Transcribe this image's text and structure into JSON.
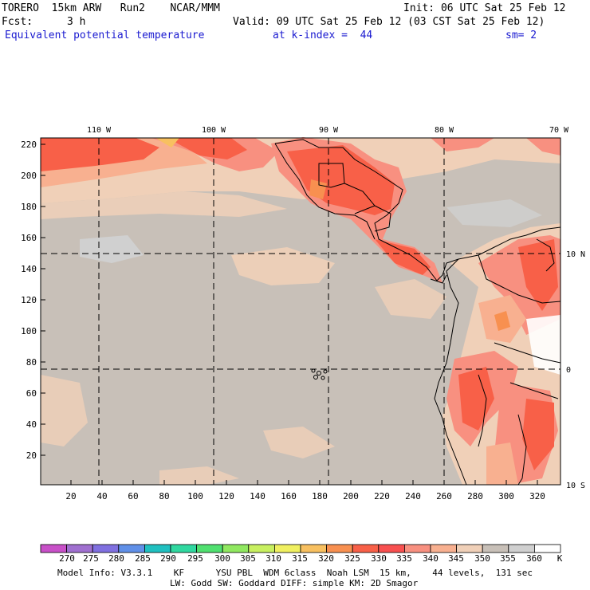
{
  "header": {
    "model_line": "TORERO  15km ARW   Run2    NCAR/MMM",
    "init": "Init: 06 UTC Sat 25 Feb 12",
    "fcst_label": "Fcst:",
    "fcst_value": "3 h",
    "valid": "Valid: 09 UTC Sat 25 Feb 12 (03 CST Sat 25 Feb 12)",
    "field": "Equivalent potential temperature",
    "kindex": "at k-index =  44",
    "smooth": "sm= 2"
  },
  "map": {
    "lon_labels": [
      "110 W",
      "100 W",
      "90 W",
      "80 W",
      "70 W"
    ],
    "lat_labels": [
      "10 N",
      "0",
      "10 S"
    ],
    "y_ticks": [
      "220",
      "200",
      "180",
      "160",
      "140",
      "120",
      "100",
      "80",
      "60",
      "40",
      "20"
    ],
    "x_ticks": [
      "20",
      "40",
      "60",
      "80",
      "100",
      "120",
      "140",
      "160",
      "180",
      "200",
      "220",
      "240",
      "260",
      "280",
      "300",
      "320"
    ]
  },
  "colorbar": {
    "levels": [
      "270",
      "275",
      "280",
      "285",
      "290",
      "295",
      "300",
      "305",
      "310",
      "315",
      "320",
      "325",
      "330",
      "335",
      "340",
      "345",
      "350",
      "355",
      "360"
    ],
    "unit": "K",
    "colors": [
      "#c850c8",
      "#a070d0",
      "#8070e0",
      "#6090e8",
      "#20c0c0",
      "#30d8a0",
      "#50e070",
      "#90e860",
      "#c8f060",
      "#f0f060",
      "#f8c060",
      "#f89050",
      "#f86048",
      "#f85050",
      "#f89080",
      "#f8b090",
      "#f0d0b8",
      "#c8c0b8",
      "#d0d0d0",
      "#ffffff"
    ]
  },
  "footer": {
    "line1": "Model Info: V3.3.1    KF      YSU PBL  WDM 6class  Noah LSM  15 km,    44 levels,  131 sec",
    "line2": "LW: Godd SW: Goddard DIFF: simple KM: 2D Smagor"
  },
  "legend_colors": {
    "background": "#c8c0b8",
    "tan": "#f0d0b8",
    "salmon": "#f8b090",
    "pink": "#f89080",
    "red": "#f86048",
    "orange": "#f89050",
    "grey": "#d0d0d0",
    "white": "#ffffff"
  }
}
